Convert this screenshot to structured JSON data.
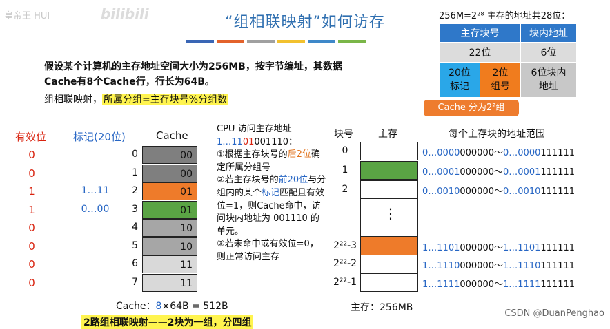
{
  "watermark": {
    "top_left": "皇帝王 HUI",
    "bilibili": "bilibili",
    "bottom_right": "CSDN @DuanPenghao"
  },
  "title": "“组相联映射”如何访存",
  "stripe_colors": [
    "#3a66b5",
    "#e3622b",
    "#a0a0a0",
    "#f2c12e",
    "#3e88c9",
    "#7ab648"
  ],
  "intro": {
    "line1": "假设某个计算机的主存地址空间大小为256MB，按字节编址，其数据Cache有8个Cache行，行长为64B。",
    "line2_prefix": "组相联映射，",
    "line2_highlight": "所属分组=主存块号%分组数"
  },
  "address": {
    "header": "256M=2²⁸ 主存的地址共28位：",
    "col1": "主存块号",
    "col2": "块内地址",
    "bits1": "22位",
    "bits2": "6位",
    "tag_cell": "20位\n标记",
    "group_cell": "2位\n组号",
    "offset_cell": "6位块内\n地址",
    "callout": "Cache 分为2²组"
  },
  "cache": {
    "valid_header": "有效位",
    "tag_header": "标记(20位)",
    "cache_header": "Cache",
    "rows": [
      {
        "idx": "0",
        "valid": "0",
        "tag": "",
        "group": "00",
        "color": "#7f7f7f"
      },
      {
        "idx": "1",
        "valid": "0",
        "tag": "",
        "group": "00",
        "color": "#7f7f7f"
      },
      {
        "idx": "2",
        "valid": "1",
        "tag": "1…11",
        "group": "01",
        "color": "#ee7b2a"
      },
      {
        "idx": "3",
        "valid": "1",
        "tag": "0…00",
        "group": "01",
        "color": "#5aa444"
      },
      {
        "idx": "4",
        "valid": "0",
        "tag": "",
        "group": "10",
        "color": "#a6a6a6"
      },
      {
        "idx": "5",
        "valid": "0",
        "tag": "",
        "group": "10",
        "color": "#a6a6a6"
      },
      {
        "idx": "6",
        "valid": "0",
        "tag": "",
        "group": "11",
        "color": "#d9d9d9"
      },
      {
        "idx": "7",
        "valid": "0",
        "tag": "",
        "group": "11",
        "color": "#d9d9d9"
      }
    ],
    "size_prefix": "Cache：",
    "size_n": "8",
    "size_rest": "×64B = 512B",
    "footer": "2路组相联映射——2块为一组，分四组"
  },
  "cpu": {
    "title": "CPU 访问主存地址",
    "addr_a": "1…11",
    "addr_b": "01",
    "addr_c": "001110",
    "addr_colon": "：",
    "s1a": "①根据主存块号的",
    "s1b": "后2位",
    "s1c": "确定所属分组号",
    "s2a": "②若主存块号的",
    "s2b": "前20位",
    "s2c": "与分组内的某个",
    "s2d": "标记",
    "s2e": "匹配且有效位=1，则Cache命中，访问块内地址为 001110 的单元。",
    "s3": "③若未命中或有效位=0，则正常访问主存"
  },
  "memory": {
    "block_header": "块号",
    "mem_header": "主存",
    "range_header": "每个主存块的地址范围",
    "rows": [
      {
        "blk": "0",
        "color": "#ffffff",
        "r1": "0…0000",
        "r2": "000000",
        "r3": "0…0000",
        "r4": "111111"
      },
      {
        "blk": "1",
        "color": "#5aa444",
        "r1": "0…0001",
        "r2": "000000",
        "r3": "0…0001",
        "r4": "111111"
      },
      {
        "blk": "2",
        "color": "#ffffff",
        "r1": "0…0010",
        "r2": "000000",
        "r3": "0…0010",
        "r4": "111111"
      },
      {
        "blk": "2²²-3",
        "color": "#ee7b2a",
        "r1": "1…1101",
        "r2": "000000",
        "r3": "1…1101",
        "r4": "111111"
      },
      {
        "blk": "2²²-2",
        "color": "#ffffff",
        "r1": "1…1110",
        "r2": "000000",
        "r3": "1…1110",
        "r4": "111111"
      },
      {
        "blk": "2²²-1",
        "color": "#ffffff",
        "r1": "1…1111",
        "r2": "000000",
        "r3": "1…1111",
        "r4": "111111"
      }
    ],
    "ellipsis": "⋮",
    "tilde": "～",
    "footer": "主存：256MB"
  }
}
